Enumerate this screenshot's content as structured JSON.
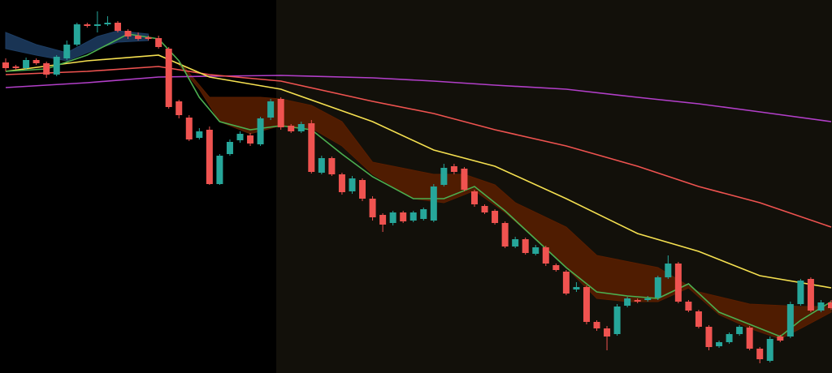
{
  "chart_data": {
    "type": "candlestick",
    "xlim": [
      -0.5,
      81.5
    ],
    "ylim": [
      0,
      460
    ],
    "up_color": "#26a69a",
    "down_color": "#ef5350",
    "open": [
      383,
      378,
      376,
      386,
      382,
      368,
      388,
      405,
      430,
      428,
      430,
      432,
      422,
      416,
      414,
      413,
      400,
      335,
      315,
      290,
      300,
      233,
      270,
      287,
      293,
      282,
      315,
      338,
      305,
      298,
      308,
      247,
      265,
      245,
      224,
      238,
      215,
      195,
      185,
      198,
      188,
      190,
      188,
      232,
      255,
      252,
      224,
      206,
      200,
      185,
      156,
      165,
      147,
      155,
      133,
      125,
      103,
      106,
      63,
      55,
      48,
      83,
      90,
      90,
      93,
      118,
      135,
      88,
      76,
      57,
      33,
      38,
      48,
      56,
      30,
      15,
      45,
      45,
      85,
      116,
      77,
      87
    ],
    "high": [
      388,
      380,
      389,
      388,
      384,
      392,
      410,
      432,
      432,
      446,
      440,
      434,
      424,
      420,
      416,
      416,
      402,
      337,
      318,
      302,
      304,
      270,
      288,
      298,
      296,
      316,
      338,
      340,
      307,
      310,
      312,
      268,
      267,
      247,
      243,
      240,
      218,
      197,
      200,
      200,
      200,
      204,
      233,
      258,
      258,
      254,
      226,
      208,
      202,
      187,
      168,
      167,
      158,
      157,
      135,
      127,
      112,
      108,
      65,
      58,
      85,
      94,
      92,
      95,
      120,
      145,
      137,
      90,
      78,
      59,
      40,
      50,
      59,
      58,
      32,
      45,
      47,
      88,
      116,
      118,
      90,
      90
    ],
    "low": [
      372,
      374,
      373,
      380,
      364,
      366,
      386,
      403,
      426,
      420,
      428,
      420,
      412,
      410,
      410,
      400,
      326,
      314,
      286,
      288,
      232,
      232,
      268,
      284,
      280,
      280,
      312,
      300,
      296,
      296,
      246,
      245,
      243,
      220,
      221,
      212,
      188,
      174,
      182,
      185,
      186,
      188,
      186,
      230,
      245,
      224,
      205,
      196,
      183,
      154,
      154,
      146,
      145,
      132,
      125,
      96,
      100,
      60,
      52,
      28,
      46,
      81,
      86,
      88,
      90,
      116,
      86,
      75,
      55,
      28,
      31,
      36,
      46,
      28,
      12,
      13,
      38,
      43,
      83,
      75,
      75,
      78
    ],
    "close": [
      376,
      376,
      386,
      382,
      368,
      390,
      405,
      430,
      428,
      430,
      432,
      422,
      415,
      412,
      412,
      402,
      328,
      318,
      288,
      298,
      233,
      268,
      285,
      295,
      283,
      314,
      335,
      303,
      298,
      307,
      248,
      265,
      245,
      223,
      240,
      215,
      192,
      183,
      198,
      187,
      198,
      202,
      230,
      253,
      248,
      226,
      208,
      198,
      185,
      156,
      165,
      148,
      155,
      135,
      127,
      98,
      106,
      63,
      55,
      45,
      82,
      92,
      88,
      92,
      118,
      135,
      88,
      77,
      57,
      32,
      38,
      48,
      57,
      30,
      17,
      42,
      40,
      85,
      114,
      77,
      87,
      80
    ],
    "lines": [
      {
        "color": "#b23fc9",
        "x": [
          0,
          8,
          15,
          20,
          27,
          36,
          42,
          48,
          55,
          62,
          68,
          74,
          81
        ],
        "values": [
          352,
          358,
          365,
          366,
          367,
          364,
          360,
          355,
          350,
          340,
          332,
          322,
          310
        ]
      },
      {
        "color": "#ef5350",
        "x": [
          0,
          8,
          15,
          20,
          27,
          36,
          42,
          48,
          55,
          62,
          68,
          74,
          81
        ],
        "values": [
          368,
          372,
          378,
          368,
          360,
          335,
          320,
          300,
          280,
          255,
          230,
          210,
          180
        ]
      },
      {
        "color": "#f5e050",
        "x": [
          0,
          8,
          15,
          20,
          27,
          36,
          42,
          48,
          55,
          62,
          68,
          74,
          81
        ],
        "values": [
          372,
          385,
          392,
          365,
          350,
          310,
          275,
          255,
          215,
          172,
          150,
          120,
          105
        ]
      },
      {
        "color": "#4caf50",
        "x": [
          0,
          4,
          8,
          12,
          15,
          17,
          19,
          21,
          24,
          27,
          30,
          33,
          36,
          40,
          43,
          46,
          49,
          52,
          55,
          58,
          61,
          64,
          67,
          70,
          73,
          76,
          78,
          81
        ],
        "values": [
          372,
          375,
          392,
          418,
          412,
          385,
          340,
          310,
          300,
          305,
          300,
          270,
          242,
          215,
          215,
          230,
          200,
          165,
          130,
          100,
          95,
          92,
          110,
          75,
          60,
          45,
          65,
          88
        ]
      }
    ],
    "bands": [
      {
        "color": "#1d3d63",
        "upper": {
          "x": [
            0,
            3,
            6,
            9,
            11,
            14
          ],
          "values": [
            420,
            405,
            395,
            415,
            422,
            418
          ]
        },
        "lower": {
          "x": [
            0,
            3,
            6,
            9,
            11,
            14
          ],
          "values": [
            400,
            392,
            385,
            400,
            408,
            410
          ]
        }
      },
      {
        "color": "#5a1e00",
        "upper": {
          "x": [
            17,
            20,
            25,
            27,
            30,
            33,
            36,
            42,
            45,
            48,
            50,
            55,
            58,
            64,
            66,
            68,
            73,
            78,
            81
          ],
          "values": [
            385,
            340,
            340,
            338,
            330,
            310,
            260,
            245,
            245,
            232,
            210,
            180,
            145,
            130,
            115,
            100,
            85,
            82,
            82
          ]
        },
        "lower": {
          "x": [
            17,
            19,
            21,
            24,
            27,
            30,
            33,
            36,
            40,
            43,
            46,
            49,
            52,
            55,
            58,
            61,
            64,
            67,
            70,
            73,
            76,
            78,
            81
          ],
          "values": [
            380,
            350,
            310,
            295,
            305,
            302,
            280,
            245,
            215,
            210,
            225,
            198,
            165,
            130,
            92,
            88,
            88,
            105,
            72,
            55,
            42,
            55,
            75
          ]
        }
      }
    ]
  }
}
